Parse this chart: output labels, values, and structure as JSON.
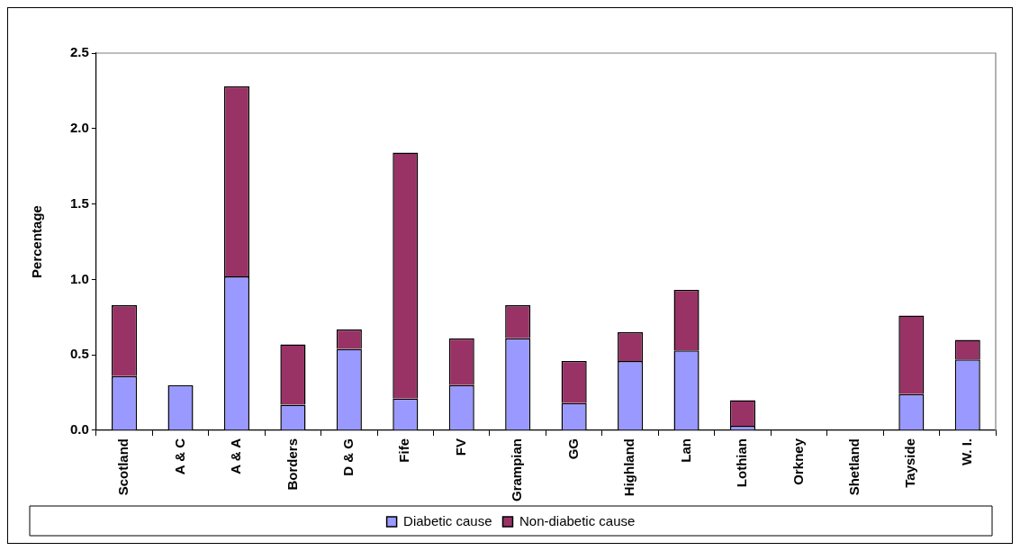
{
  "chart_data": {
    "type": "bar",
    "stacked": true,
    "ylabel": "Percentage",
    "categories": [
      "Scotland",
      "A & C",
      "A & A",
      "Borders",
      "D & G",
      "Fife",
      "FV",
      "Grampian",
      "GG",
      "Highland",
      "Lan",
      "Lothian",
      "Orkney",
      "Shetland",
      "Tayside",
      "W. I."
    ],
    "series": [
      {
        "name": "Diabetic cause",
        "color": "#9999ff",
        "values": [
          0.36,
          0.3,
          1.02,
          0.17,
          0.54,
          0.21,
          0.3,
          0.61,
          0.18,
          0.46,
          0.53,
          0.03,
          0,
          0,
          0.24,
          0.47
        ]
      },
      {
        "name": "Non-diabetic cause",
        "color": "#993366",
        "values": [
          0.47,
          0,
          1.26,
          0.4,
          0.13,
          1.63,
          0.31,
          0.22,
          0.28,
          0.19,
          0.4,
          0.17,
          0,
          0,
          0.52,
          0.13
        ]
      }
    ],
    "ylim": [
      0,
      2.5
    ],
    "yticks": [
      {
        "value": 0,
        "label": "0.0"
      },
      {
        "value": 0.5,
        "label": "0.5"
      },
      {
        "value": 1,
        "label": "1.0"
      },
      {
        "value": 1.5,
        "label": "1.5"
      },
      {
        "value": 2,
        "label": "2.0"
      },
      {
        "value": 2.5,
        "label": "2.5"
      }
    ],
    "grid": false,
    "legend": "bottom"
  }
}
